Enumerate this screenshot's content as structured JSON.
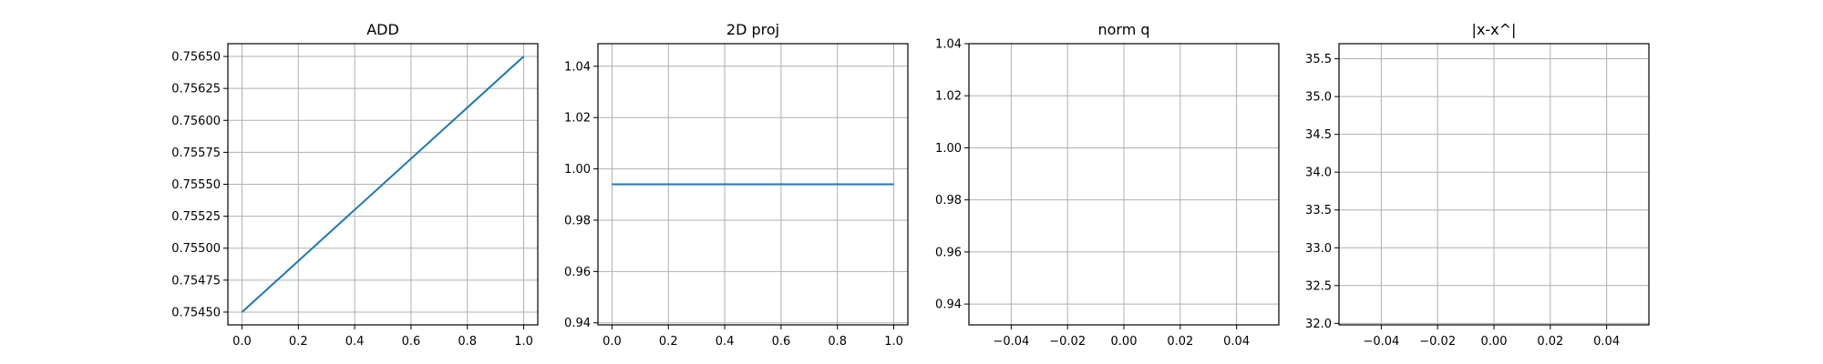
{
  "chart_data": [
    {
      "type": "line",
      "title": "ADD",
      "xlabel": "",
      "ylabel": "",
      "xlim": [
        -0.05,
        1.05
      ],
      "ylim": [
        0.7544,
        0.7566
      ],
      "grid": true,
      "xticks": [
        0.0,
        0.2,
        0.4,
        0.6,
        0.8,
        1.0
      ],
      "xtick_labels": [
        "0.0",
        "0.2",
        "0.4",
        "0.6",
        "0.8",
        "1.0"
      ],
      "yticks": [
        0.7545,
        0.75475,
        0.755,
        0.75525,
        0.7555,
        0.75575,
        0.756,
        0.75625,
        0.7565
      ],
      "ytick_labels": [
        "0.75450",
        "0.75475",
        "0.75500",
        "0.75525",
        "0.75550",
        "0.75575",
        "0.75600",
        "0.75625",
        "0.75650"
      ],
      "series": [
        {
          "x": [
            0.0,
            1.0
          ],
          "y": [
            0.7545,
            0.7565
          ],
          "color": "#1f77b4"
        }
      ]
    },
    {
      "type": "line",
      "title": "2D proj",
      "xlabel": "",
      "ylabel": "",
      "xlim": [
        -0.05,
        1.05
      ],
      "ylim": [
        0.9392,
        1.0488
      ],
      "grid": true,
      "xticks": [
        0.0,
        0.2,
        0.4,
        0.6,
        0.8,
        1.0
      ],
      "xtick_labels": [
        "0.0",
        "0.2",
        "0.4",
        "0.6",
        "0.8",
        "1.0"
      ],
      "yticks": [
        0.94,
        0.96,
        0.98,
        1.0,
        1.02,
        1.04
      ],
      "ytick_labels": [
        "0.94",
        "0.96",
        "0.98",
        "1.00",
        "1.02",
        "1.04"
      ],
      "series": [
        {
          "x": [
            0.0,
            1.0
          ],
          "y": [
            0.994,
            0.994
          ],
          "color": "#1f77b4"
        }
      ]
    },
    {
      "type": "line",
      "title": "norm q",
      "xlabel": "",
      "ylabel": "",
      "xlim": [
        -0.055,
        0.055
      ],
      "ylim": [
        0.932,
        1.04
      ],
      "grid": true,
      "xticks": [
        -0.04,
        -0.02,
        0.0,
        0.02,
        0.04
      ],
      "xtick_labels": [
        "−0.04",
        "−0.02",
        "0.00",
        "0.02",
        "0.04"
      ],
      "yticks": [
        0.94,
        0.96,
        0.98,
        1.0,
        1.02,
        1.04
      ],
      "ytick_labels": [
        "0.94",
        "0.96",
        "0.98",
        "1.00",
        "1.02",
        "1.04"
      ],
      "series": []
    },
    {
      "type": "line",
      "title": "|x-x^|",
      "xlabel": "",
      "ylabel": "",
      "xlim": [
        -0.055,
        0.055
      ],
      "ylim": [
        31.98,
        35.7
      ],
      "grid": true,
      "xticks": [
        -0.04,
        -0.02,
        0.0,
        0.02,
        0.04
      ],
      "xtick_labels": [
        "−0.04",
        "−0.02",
        "0.00",
        "0.02",
        "0.04"
      ],
      "yticks": [
        32.0,
        32.5,
        33.0,
        33.5,
        34.0,
        34.5,
        35.0,
        35.5
      ],
      "ytick_labels": [
        "32.0",
        "32.5",
        "33.0",
        "33.5",
        "34.0",
        "34.5",
        "35.0",
        "35.5"
      ],
      "series": []
    }
  ]
}
